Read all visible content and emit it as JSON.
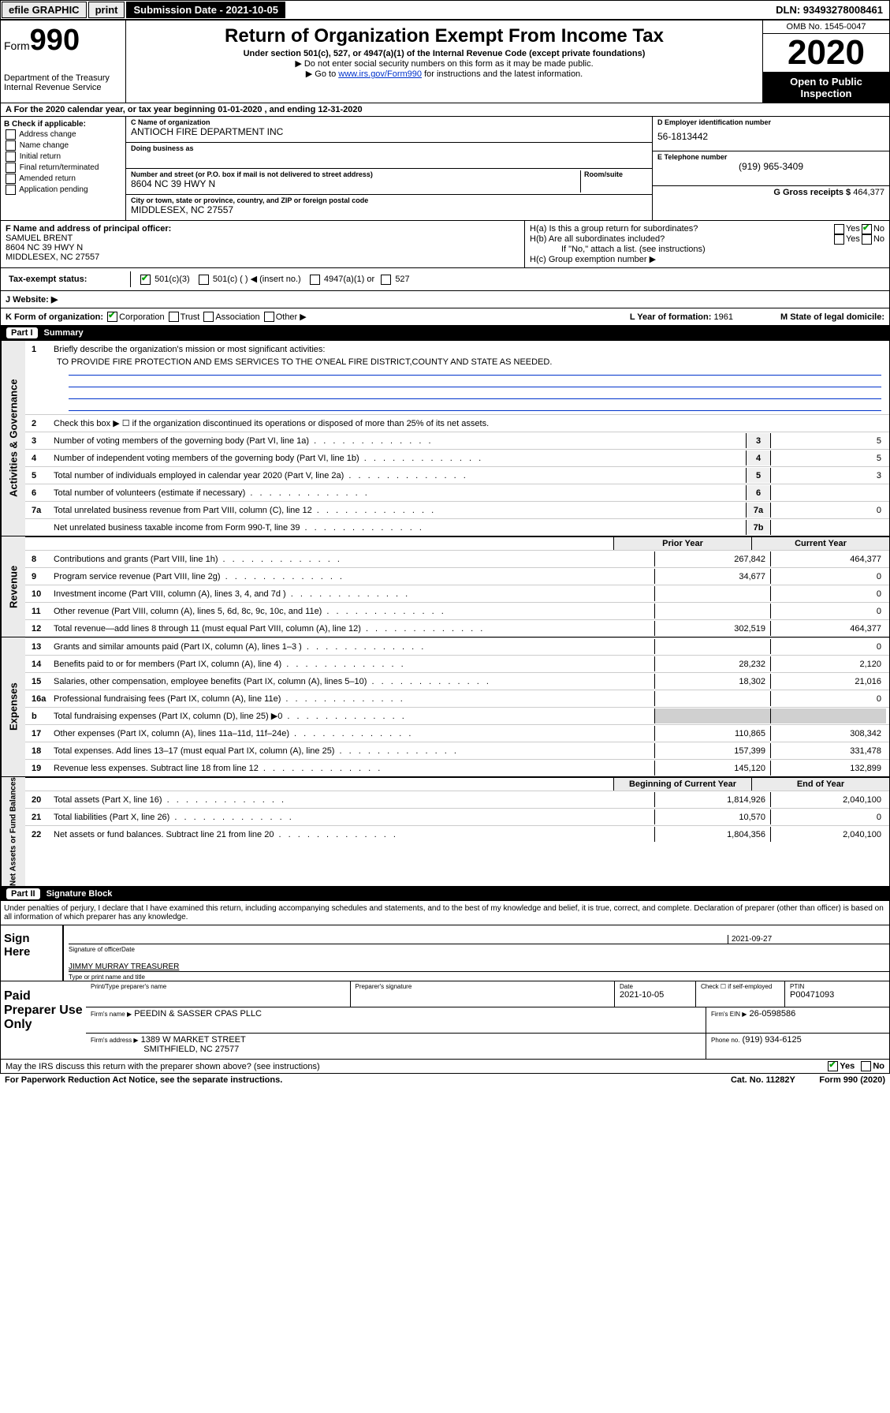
{
  "topbar": {
    "efile": "efile GRAPHIC",
    "print": "print",
    "submission": "Submission Date - 2021-10-05",
    "dln": "DLN: 93493278008461"
  },
  "header": {
    "form_prefix": "Form",
    "form_number": "990",
    "dept": "Department of the Treasury Internal Revenue Service",
    "title": "Return of Organization Exempt From Income Tax",
    "sub1": "Under section 501(c), 527, or 4947(a)(1) of the Internal Revenue Code (except private foundations)",
    "sub2": "▶ Do not enter social security numbers on this form as it may be made public.",
    "sub3_pre": "▶ Go to ",
    "sub3_link": "www.irs.gov/Form990",
    "sub3_post": " for instructions and the latest information.",
    "omb": "OMB No. 1545-0047",
    "year": "2020",
    "open": "Open to Public Inspection"
  },
  "row_a": "A For the 2020 calendar year, or tax year beginning 01-01-2020    , and ending 12-31-2020",
  "box_b": {
    "title": "B Check if applicable:",
    "items": [
      "Address change",
      "Name change",
      "Initial return",
      "Final return/terminated",
      "Amended return",
      "Application pending"
    ]
  },
  "box_c": {
    "name_lab": "C Name of organization",
    "name": "ANTIOCH FIRE DEPARTMENT INC",
    "dba_lab": "Doing business as",
    "addr_lab": "Number and street (or P.O. box if mail is not delivered to street address)",
    "room_lab": "Room/suite",
    "addr": "8604 NC 39 HWY N",
    "city_lab": "City or town, state or province, country, and ZIP or foreign postal code",
    "city": "MIDDLESEX, NC  27557"
  },
  "box_d": {
    "ein_lab": "D Employer identification number",
    "ein": "56-1813442",
    "tel_lab": "E Telephone number",
    "tel": "(919) 965-3409",
    "gross_lab": "G Gross receipts $",
    "gross": "464,377"
  },
  "box_f": {
    "lab": "F  Name and address of principal officer:",
    "name": "SAMUEL BRENT",
    "addr1": "8604 NC 39 HWY N",
    "addr2": "MIDDLESEX, NC  27557"
  },
  "box_h": {
    "ha": "H(a)  Is this a group return for subordinates?",
    "hb": "H(b)  Are all subordinates included?",
    "hb_note": "If \"No,\" attach a list. (see instructions)",
    "hc": "H(c)  Group exemption number ▶",
    "yes": "Yes",
    "no": "No"
  },
  "row_i": {
    "lab": "Tax-exempt status:",
    "o1": "501(c)(3)",
    "o2": "501(c) (  ) ◀ (insert no.)",
    "o3": "4947(a)(1) or",
    "o4": "527"
  },
  "row_j": "J    Website: ▶",
  "row_k": {
    "lab": "K Form of organization:",
    "corp": "Corporation",
    "trust": "Trust",
    "assoc": "Association",
    "other": "Other ▶",
    "year_lab": "L Year of formation:",
    "year": "1961",
    "state_lab": "M State of legal domicile:"
  },
  "part1": {
    "title": "Part I",
    "name": "Summary"
  },
  "gov": {
    "tab": "Activities & Governance",
    "l1_pre": "Briefly describe the organization's mission or most significant activities:",
    "l1_text": "TO PROVIDE FIRE PROTECTION AND EMS SERVICES TO THE O'NEAL FIRE DISTRICT,COUNTY AND STATE AS NEEDED.",
    "l2": "Check this box ▶ ☐  if the organization discontinued its operations or disposed of more than 25% of its net assets.",
    "l3": "Number of voting members of the governing body (Part VI, line 1a)",
    "l3v": "5",
    "l4": "Number of independent voting members of the governing body (Part VI, line 1b)",
    "l4v": "5",
    "l5": "Total number of individuals employed in calendar year 2020 (Part V, line 2a)",
    "l5v": "3",
    "l6": "Total number of volunteers (estimate if necessary)",
    "l6v": "",
    "l7a": "Total unrelated business revenue from Part VIII, column (C), line 12",
    "l7av": "0",
    "l7b": "Net unrelated business taxable income from Form 990-T, line 39",
    "l7bv": ""
  },
  "cols": {
    "prior": "Prior Year",
    "current": "Current Year",
    "begin": "Beginning of Current Year",
    "end": "End of Year"
  },
  "rev": {
    "tab": "Revenue",
    "rows": [
      {
        "n": "8",
        "t": "Contributions and grants (Part VIII, line 1h)",
        "p": "267,842",
        "c": "464,377"
      },
      {
        "n": "9",
        "t": "Program service revenue (Part VIII, line 2g)",
        "p": "34,677",
        "c": "0"
      },
      {
        "n": "10",
        "t": "Investment income (Part VIII, column (A), lines 3, 4, and 7d )",
        "p": "",
        "c": "0"
      },
      {
        "n": "11",
        "t": "Other revenue (Part VIII, column (A), lines 5, 6d, 8c, 9c, 10c, and 11e)",
        "p": "",
        "c": "0"
      },
      {
        "n": "12",
        "t": "Total revenue—add lines 8 through 11 (must equal Part VIII, column (A), line 12)",
        "p": "302,519",
        "c": "464,377"
      }
    ]
  },
  "exp": {
    "tab": "Expenses",
    "rows": [
      {
        "n": "13",
        "t": "Grants and similar amounts paid (Part IX, column (A), lines 1–3 )",
        "p": "",
        "c": "0"
      },
      {
        "n": "14",
        "t": "Benefits paid to or for members (Part IX, column (A), line 4)",
        "p": "28,232",
        "c": "2,120"
      },
      {
        "n": "15",
        "t": "Salaries, other compensation, employee benefits (Part IX, column (A), lines 5–10)",
        "p": "18,302",
        "c": "21,016"
      },
      {
        "n": "16a",
        "t": "Professional fundraising fees (Part IX, column (A), line 11e)",
        "p": "",
        "c": "0"
      },
      {
        "n": "b",
        "t": "Total fundraising expenses (Part IX, column (D), line 25) ▶0",
        "p": "gray",
        "c": "gray"
      },
      {
        "n": "17",
        "t": "Other expenses (Part IX, column (A), lines 11a–11d, 11f–24e)",
        "p": "110,865",
        "c": "308,342"
      },
      {
        "n": "18",
        "t": "Total expenses. Add lines 13–17 (must equal Part IX, column (A), line 25)",
        "p": "157,399",
        "c": "331,478"
      },
      {
        "n": "19",
        "t": "Revenue less expenses. Subtract line 18 from line 12",
        "p": "145,120",
        "c": "132,899"
      }
    ]
  },
  "net": {
    "tab": "Net Assets or Fund Balances",
    "rows": [
      {
        "n": "20",
        "t": "Total assets (Part X, line 16)",
        "p": "1,814,926",
        "c": "2,040,100"
      },
      {
        "n": "21",
        "t": "Total liabilities (Part X, line 26)",
        "p": "10,570",
        "c": "0"
      },
      {
        "n": "22",
        "t": "Net assets or fund balances. Subtract line 21 from line 20",
        "p": "1,804,356",
        "c": "2,040,100"
      }
    ]
  },
  "part2": {
    "title": "Part II",
    "name": "Signature Block"
  },
  "perjury": "Under penalties of perjury, I declare that I have examined this return, including accompanying schedules and statements, and to the best of my knowledge and belief, it is true, correct, and complete. Declaration of preparer (other than officer) is based on all information of which preparer has any knowledge.",
  "sign": {
    "here": "Sign Here",
    "sig_lab": "Signature of officer",
    "date": "2021-09-27",
    "date_lab": "Date",
    "name": "JIMMY MURRAY TREASURER",
    "name_lab": "Type or print name and title"
  },
  "paid": {
    "title": "Paid Preparer Use Only",
    "h1": "Print/Type preparer's name",
    "h2": "Preparer's signature",
    "h3": "Date",
    "h3v": "2021-10-05",
    "h4": "Check ☐ if self-employed",
    "h5": "PTIN",
    "h5v": "P00471093",
    "firm_lab": "Firm's name    ▶",
    "firm": "PEEDIN & SASSER CPAS PLLC",
    "ein_lab": "Firm's EIN ▶",
    "ein": "26-0598586",
    "addr_lab": "Firm's address ▶",
    "addr1": "1389 W MARKET STREET",
    "addr2": "SMITHFIELD, NC  27577",
    "phone_lab": "Phone no.",
    "phone": "(919) 934-6125"
  },
  "foot": {
    "q": "May the IRS discuss this return with the preparer shown above? (see instructions)",
    "yes": "Yes",
    "no": "No",
    "pra": "For Paperwork Reduction Act Notice, see the separate instructions.",
    "cat": "Cat. No. 11282Y",
    "form": "Form 990 (2020)"
  }
}
